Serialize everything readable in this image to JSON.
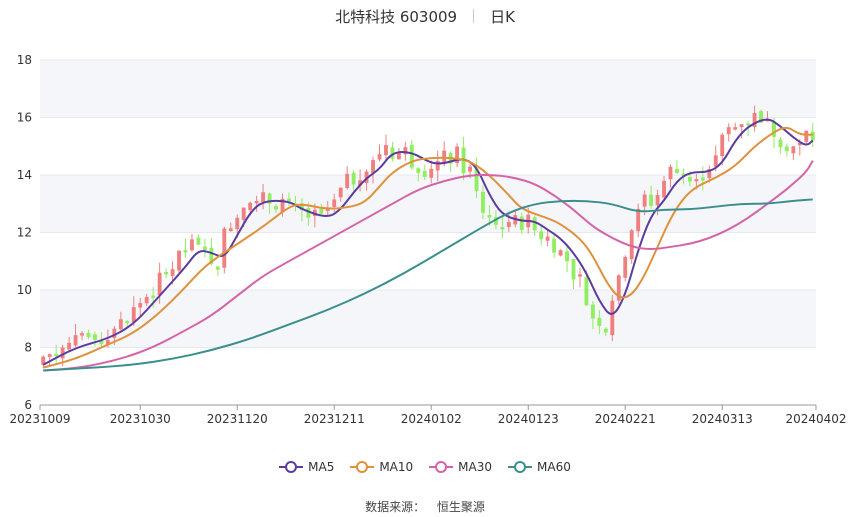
{
  "header": {
    "title": "北特科技 603009",
    "period": "日K"
  },
  "source": {
    "label": "数据来源：",
    "name": "恒生聚源"
  },
  "colors": {
    "up": "#f08080",
    "down": "#90ee60",
    "grid": "#e5e8f0",
    "band": "#f5f6fa"
  },
  "chart_data": {
    "type": "candlestick",
    "title": "北特科技 603009",
    "period": "日K",
    "ylim": [
      6,
      18
    ],
    "yticks": [
      6,
      8,
      10,
      12,
      14,
      16,
      18
    ],
    "x_labels": [
      "20231009",
      "20231030",
      "20231120",
      "20231211",
      "20240102",
      "20240123",
      "20240221",
      "20240313",
      "20240402"
    ],
    "x_label_positions": [
      0,
      15,
      30,
      45,
      60,
      75,
      90,
      105,
      119
    ],
    "grid": true,
    "legend": "bottom-center",
    "series": [
      {
        "name": "MA5",
        "color": "#5b3c9e",
        "points": [
          [
            0,
            7.4
          ],
          [
            5,
            8.0
          ],
          [
            10,
            8.3
          ],
          [
            14,
            8.8
          ],
          [
            18,
            9.8
          ],
          [
            22,
            10.8
          ],
          [
            24,
            11.4
          ],
          [
            26,
            11.3
          ],
          [
            28,
            11.1
          ],
          [
            30,
            11.9
          ],
          [
            32,
            12.7
          ],
          [
            34,
            13.1
          ],
          [
            38,
            13.1
          ],
          [
            40,
            12.8
          ],
          [
            44,
            12.5
          ],
          [
            46,
            12.8
          ],
          [
            48,
            13.4
          ],
          [
            50,
            13.9
          ],
          [
            52,
            14.2
          ],
          [
            54,
            14.8
          ],
          [
            57,
            14.8
          ],
          [
            60,
            14.4
          ],
          [
            62,
            14.4
          ],
          [
            65,
            14.6
          ],
          [
            67,
            14.3
          ],
          [
            69,
            13.3
          ],
          [
            71,
            12.6
          ],
          [
            74,
            12.4
          ],
          [
            76,
            12.4
          ],
          [
            78,
            12.1
          ],
          [
            80,
            11.8
          ],
          [
            82,
            11.3
          ],
          [
            84,
            10.6
          ],
          [
            86,
            9.6
          ],
          [
            88,
            9.0
          ],
          [
            90,
            9.8
          ],
          [
            92,
            11.4
          ],
          [
            94,
            12.6
          ],
          [
            96,
            13.1
          ],
          [
            98,
            13.8
          ],
          [
            100,
            14.1
          ],
          [
            103,
            14.1
          ],
          [
            105,
            14.4
          ],
          [
            107,
            15.2
          ],
          [
            109,
            15.7
          ],
          [
            112,
            16.0
          ],
          [
            114,
            15.7
          ],
          [
            116,
            15.3
          ],
          [
            118,
            15.0
          ],
          [
            119,
            15.2
          ]
        ]
      },
      {
        "name": "MA10",
        "color": "#e0913c",
        "points": [
          [
            0,
            7.3
          ],
          [
            5,
            7.6
          ],
          [
            10,
            8.1
          ],
          [
            14,
            8.5
          ],
          [
            18,
            9.2
          ],
          [
            22,
            10.1
          ],
          [
            24,
            10.6
          ],
          [
            26,
            11.0
          ],
          [
            30,
            11.6
          ],
          [
            34,
            12.2
          ],
          [
            38,
            12.9
          ],
          [
            40,
            13.0
          ],
          [
            44,
            12.8
          ],
          [
            48,
            12.9
          ],
          [
            50,
            13.1
          ],
          [
            52,
            13.6
          ],
          [
            54,
            14.1
          ],
          [
            57,
            14.5
          ],
          [
            60,
            14.6
          ],
          [
            63,
            14.6
          ],
          [
            66,
            14.5
          ],
          [
            69,
            14.0
          ],
          [
            72,
            13.3
          ],
          [
            74,
            12.8
          ],
          [
            78,
            12.5
          ],
          [
            80,
            12.3
          ],
          [
            83,
            11.8
          ],
          [
            85,
            11.2
          ],
          [
            87,
            10.3
          ],
          [
            89,
            9.7
          ],
          [
            91,
            9.8
          ],
          [
            93,
            10.5
          ],
          [
            95,
            11.5
          ],
          [
            97,
            12.5
          ],
          [
            99,
            13.2
          ],
          [
            101,
            13.6
          ],
          [
            104,
            13.9
          ],
          [
            107,
            14.3
          ],
          [
            110,
            15.0
          ],
          [
            113,
            15.5
          ],
          [
            115,
            15.7
          ],
          [
            117,
            15.4
          ],
          [
            119,
            15.4
          ]
        ]
      },
      {
        "name": "MA30",
        "color": "#d463a8",
        "points": [
          [
            0,
            7.2
          ],
          [
            6,
            7.3
          ],
          [
            12,
            7.6
          ],
          [
            17,
            8.0
          ],
          [
            22,
            8.6
          ],
          [
            26,
            9.1
          ],
          [
            30,
            9.8
          ],
          [
            34,
            10.5
          ],
          [
            38,
            11.0
          ],
          [
            42,
            11.5
          ],
          [
            46,
            12.0
          ],
          [
            50,
            12.5
          ],
          [
            54,
            13.0
          ],
          [
            58,
            13.5
          ],
          [
            62,
            13.8
          ],
          [
            66,
            14.0
          ],
          [
            70,
            14.0
          ],
          [
            73,
            13.9
          ],
          [
            76,
            13.7
          ],
          [
            79,
            13.3
          ],
          [
            82,
            12.8
          ],
          [
            85,
            12.2
          ],
          [
            88,
            11.8
          ],
          [
            91,
            11.5
          ],
          [
            94,
            11.4
          ],
          [
            97,
            11.5
          ],
          [
            100,
            11.6
          ],
          [
            103,
            11.8
          ],
          [
            106,
            12.1
          ],
          [
            109,
            12.5
          ],
          [
            112,
            13.0
          ],
          [
            115,
            13.5
          ],
          [
            118,
            14.1
          ],
          [
            119,
            14.5
          ]
        ]
      },
      {
        "name": "MA60",
        "color": "#3a8f8e",
        "points": [
          [
            0,
            7.2
          ],
          [
            8,
            7.3
          ],
          [
            14,
            7.4
          ],
          [
            20,
            7.6
          ],
          [
            26,
            7.9
          ],
          [
            32,
            8.3
          ],
          [
            38,
            8.8
          ],
          [
            44,
            9.3
          ],
          [
            50,
            9.9
          ],
          [
            56,
            10.6
          ],
          [
            62,
            11.4
          ],
          [
            68,
            12.2
          ],
          [
            72,
            12.7
          ],
          [
            76,
            13.0
          ],
          [
            80,
            13.1
          ],
          [
            84,
            13.1
          ],
          [
            88,
            13.0
          ],
          [
            92,
            12.7
          ],
          [
            96,
            12.8
          ],
          [
            100,
            12.8
          ],
          [
            104,
            12.9
          ],
          [
            108,
            13.0
          ],
          [
            112,
            13.0
          ],
          [
            116,
            13.1
          ],
          [
            119,
            13.15
          ]
        ]
      }
    ],
    "candles_note": "daily OHLC bars estimated from the figure (red = up, green = down)"
  }
}
